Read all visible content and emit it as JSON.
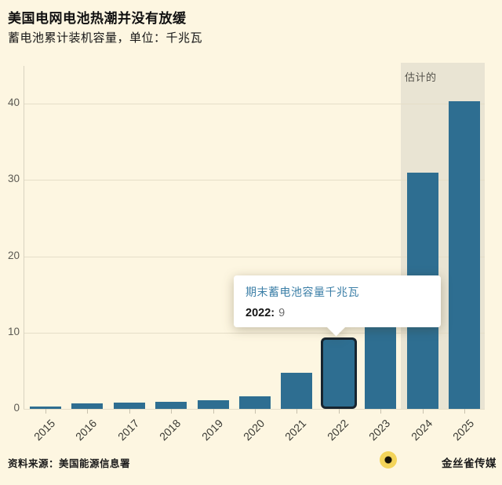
{
  "header": {
    "title": "美国电网电池热潮并没有放缓",
    "subtitle": "蓄电池累计装机容量，单位：千兆瓦"
  },
  "tooltip": {
    "title": "期末蓄电池容量千兆瓦",
    "year_label": "2022:",
    "value": "9"
  },
  "footer": {
    "source": "资料来源：美国能源信息署",
    "brand": "金丝雀传媒"
  },
  "colors": {
    "background": "#fdf6e1",
    "bar": "#2e6e91",
    "highlight_outline": "#17242f",
    "estimate_band": "#e9e4d3",
    "gridline": "#e5dec8",
    "tooltip_title": "#3c7fa7",
    "logo_gold": "#f3d45a"
  },
  "chart_data": {
    "type": "bar",
    "title": "美国电网电池热潮并没有放缓",
    "subtitle": "蓄电池累计装机容量，单位：千兆瓦",
    "categories": [
      "2015",
      "2016",
      "2017",
      "2018",
      "2019",
      "2020",
      "2021",
      "2022",
      "2023",
      "2024",
      "2025"
    ],
    "values": [
      0.3,
      0.7,
      0.8,
      0.9,
      1.1,
      1.6,
      4.7,
      9,
      17.5,
      31,
      40.3
    ],
    "estimated_years": [
      "2024",
      "2025"
    ],
    "estimated_label": "估计的",
    "highlighted_year": "2022",
    "highlighted_value_label": "2022: 9",
    "xlabel": "",
    "ylabel": "千兆瓦",
    "ylim": [
      0,
      45
    ],
    "yticks": [
      0,
      10,
      20,
      30,
      40
    ],
    "grid": true,
    "legend_position": "none"
  }
}
